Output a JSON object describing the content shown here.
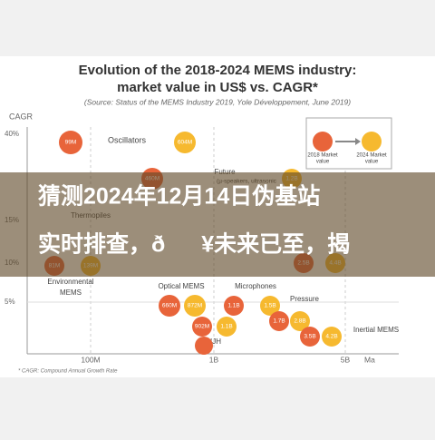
{
  "chart_image": {
    "title_lines": [
      "Evolution of the 2018-2024 MEMS industry:",
      "market value in US$ vs. CAGR*"
    ],
    "subtitle": "(Source: Status of the MEMS Industry 2019, Yole Développement, June 2019)",
    "y_axis_label": "CAGR",
    "y_ticks": [
      "40%",
      "15%",
      "10%",
      "5%"
    ],
    "x_ticks": [
      "100M",
      "1B",
      "5B",
      "Ma"
    ],
    "legend": [
      [
        "2018 Market",
        "value"
      ],
      [
        "2024 Market",
        "value"
      ]
    ],
    "groups": [
      "Oscillators",
      "Future",
      "(µ-speakers, ultrasonic",
      "Thermopiles",
      "Environmental",
      "MEMS",
      "Optical MEMS",
      "Microphones",
      "Pressure",
      "Inertial MEMS",
      "IJH"
    ],
    "bubbles": [
      "99M",
      "604M",
      "460M",
      "1.2B",
      "81M",
      "139M",
      "2.5B",
      "4.4B",
      "660M",
      "872M",
      "1.1B",
      "1.5B",
      "902M",
      "1.1B",
      "1.7B",
      "2.8B",
      "3.5B",
      "4.2B"
    ],
    "footnote": "* CAGR: Compound Annual Growth Rate"
  },
  "banner": {
    "lines": [
      "猜测2024年12月14日伪基站",
      "实时排查，ð¥未来已至，揭"
    ]
  }
}
